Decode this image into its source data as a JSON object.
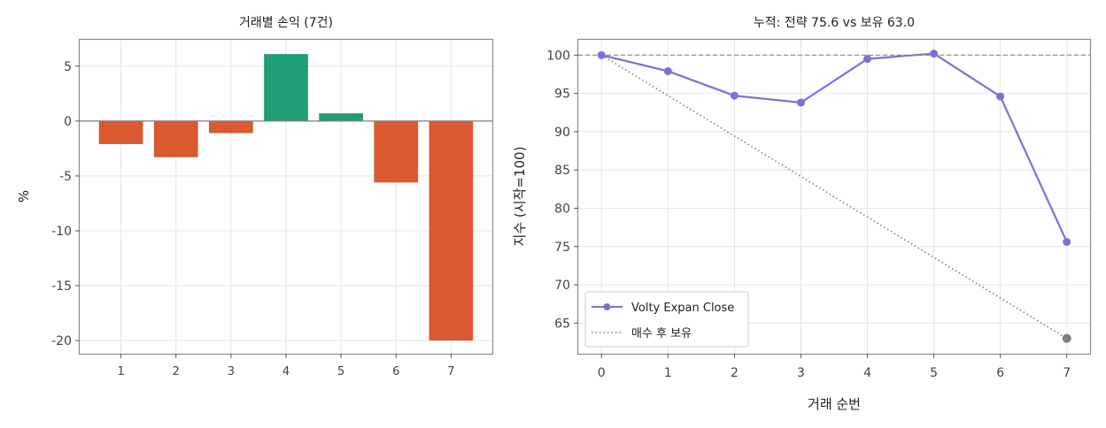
{
  "charts": [
    {
      "type": "bar",
      "title": "거래별 손익 (7건)",
      "xlabel": "",
      "ylabel": "%",
      "categories": [
        "1",
        "2",
        "3",
        "4",
        "5",
        "6",
        "7"
      ],
      "values": [
        -2.1,
        -3.3,
        -1.1,
        6.1,
        0.7,
        -5.6,
        -20.0
      ],
      "ylim": [
        -21.2,
        7.4
      ],
      "yticks": [
        5,
        0,
        -5,
        -10,
        -15,
        -20
      ],
      "ytick_labels": [
        "5",
        "0",
        "-5",
        "-10",
        "-15",
        "-20"
      ],
      "grid": true,
      "colors": {
        "positive": "#1f9e77",
        "negative": "#d95930",
        "zero_line": "#7f7f7f"
      }
    },
    {
      "type": "line",
      "title": "누적: 전략 75.6 vs 보유 63.0",
      "xlabel": "거래 순번",
      "ylabel": "지수 (시작=100)",
      "x": [
        0,
        1,
        2,
        3,
        4,
        5,
        6,
        7
      ],
      "xlim": [
        -0.35,
        7.35
      ],
      "ylim": [
        61.0,
        102.0
      ],
      "xticks": [
        "0",
        "1",
        "2",
        "3",
        "4",
        "5",
        "6",
        "7"
      ],
      "yticks": [
        100,
        95,
        90,
        85,
        80,
        75,
        70,
        65
      ],
      "ytick_labels": [
        "100",
        "95",
        "90",
        "85",
        "80",
        "75",
        "70",
        "65"
      ],
      "reference_line": 100,
      "grid": true,
      "legend_position": "lower-left",
      "series": [
        {
          "name": "Volty Expan Close",
          "x": [
            0,
            1,
            2,
            3,
            4,
            5,
            6,
            7
          ],
          "values": [
            100.0,
            97.9,
            94.7,
            93.8,
            99.5,
            100.2,
            94.6,
            75.6
          ],
          "color": "#7b72d4",
          "style": "solid-markers"
        },
        {
          "name": "매수 후 보유",
          "x": [
            0,
            7
          ],
          "values": [
            100.0,
            63.0
          ],
          "color": "#7f7f7f",
          "style": "dotted-end-marker"
        }
      ]
    }
  ]
}
